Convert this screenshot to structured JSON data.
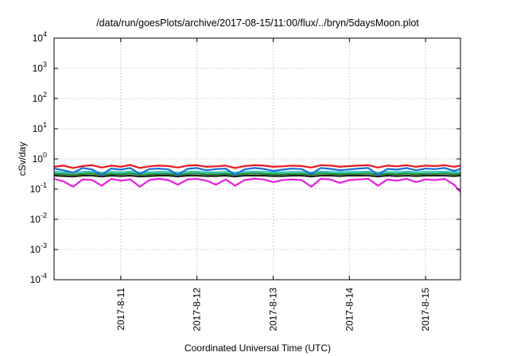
{
  "chart_data": {
    "type": "line",
    "title": "/data/run/goesPlots/archive/2017-08-15/11:00/flux/../bryn/5daysMoon.plot",
    "xlabel": "Coordinated Universal Time (UTC)",
    "ylabel": "cSv/day",
    "yscale": "log",
    "ylim": [
      0.0001,
      10000
    ],
    "xlim": [
      "2017-08-10 03:00",
      "2017-08-15 11:00"
    ],
    "grid": true,
    "legend": "none",
    "x_ticks": [
      {
        "label": "2017-8-11",
        "value": "2017-08-11 00:00"
      },
      {
        "label": "2017-8-12",
        "value": "2017-08-12 00:00"
      },
      {
        "label": "2017-8-13",
        "value": "2017-08-13 00:00"
      },
      {
        "label": "2017-8-14",
        "value": "2017-08-14 00:00"
      },
      {
        "label": "2017-8-15",
        "value": "2017-08-15 00:00"
      }
    ],
    "y_ticks": [
      {
        "base": "10",
        "exp": "4",
        "value": 10000
      },
      {
        "base": "10",
        "exp": "3",
        "value": 1000
      },
      {
        "base": "10",
        "exp": "2",
        "value": 100
      },
      {
        "base": "10",
        "exp": "1",
        "value": 10
      },
      {
        "base": "10",
        "exp": "0",
        "value": 1
      },
      {
        "base": "10",
        "exp": "-1",
        "value": 0.1
      },
      {
        "base": "10",
        "exp": "-2",
        "value": 0.01
      },
      {
        "base": "10",
        "exp": "-3",
        "value": 0.001
      },
      {
        "base": "10",
        "exp": "-4",
        "value": 0.0001
      }
    ],
    "x": [
      "2017-08-10 03:00",
      "2017-08-10 06:00",
      "2017-08-10 09:00",
      "2017-08-10 12:00",
      "2017-08-10 15:00",
      "2017-08-10 18:00",
      "2017-08-10 21:00",
      "2017-08-11 00:00",
      "2017-08-11 03:00",
      "2017-08-11 06:00",
      "2017-08-11 09:00",
      "2017-08-11 12:00",
      "2017-08-11 15:00",
      "2017-08-11 18:00",
      "2017-08-11 21:00",
      "2017-08-12 00:00",
      "2017-08-12 03:00",
      "2017-08-12 06:00",
      "2017-08-12 09:00",
      "2017-08-12 12:00",
      "2017-08-12 15:00",
      "2017-08-12 18:00",
      "2017-08-12 21:00",
      "2017-08-13 00:00",
      "2017-08-13 03:00",
      "2017-08-13 06:00",
      "2017-08-13 09:00",
      "2017-08-13 12:00",
      "2017-08-13 15:00",
      "2017-08-13 18:00",
      "2017-08-13 21:00",
      "2017-08-14 00:00",
      "2017-08-14 03:00",
      "2017-08-14 06:00",
      "2017-08-14 09:00",
      "2017-08-14 12:00",
      "2017-08-14 15:00",
      "2017-08-14 18:00",
      "2017-08-14 21:00",
      "2017-08-15 00:00",
      "2017-08-15 03:00",
      "2017-08-15 06:00",
      "2017-08-15 09:00",
      "2017-08-15 11:00"
    ],
    "series": [
      {
        "color": "#e8191e",
        "values": [
          0.55,
          0.6,
          0.5,
          0.58,
          0.62,
          0.52,
          0.6,
          0.55,
          0.63,
          0.5,
          0.57,
          0.6,
          0.58,
          0.52,
          0.6,
          0.62,
          0.55,
          0.57,
          0.6,
          0.5,
          0.58,
          0.62,
          0.6,
          0.55,
          0.57,
          0.6,
          0.58,
          0.52,
          0.62,
          0.6,
          0.55,
          0.58,
          0.6,
          0.62,
          0.52,
          0.6,
          0.57,
          0.62,
          0.55,
          0.6,
          0.58,
          0.62,
          0.55,
          0.6
        ]
      },
      {
        "color": "#1a6fd8",
        "values": [
          0.48,
          0.42,
          0.35,
          0.5,
          0.45,
          0.3,
          0.48,
          0.44,
          0.5,
          0.32,
          0.46,
          0.48,
          0.45,
          0.3,
          0.47,
          0.5,
          0.42,
          0.46,
          0.48,
          0.3,
          0.45,
          0.5,
          0.47,
          0.4,
          0.44,
          0.48,
          0.46,
          0.32,
          0.5,
          0.47,
          0.42,
          0.45,
          0.48,
          0.5,
          0.3,
          0.47,
          0.44,
          0.5,
          0.42,
          0.48,
          0.46,
          0.5,
          0.4,
          0.47
        ]
      },
      {
        "color": "#2bc4b4",
        "values": [
          0.37,
          0.36,
          0.35,
          0.37,
          0.38,
          0.35,
          0.37,
          0.36,
          0.38,
          0.35,
          0.36,
          0.37,
          0.37,
          0.35,
          0.37,
          0.38,
          0.36,
          0.36,
          0.37,
          0.35,
          0.37,
          0.38,
          0.37,
          0.36,
          0.36,
          0.37,
          0.37,
          0.35,
          0.38,
          0.37,
          0.36,
          0.37,
          0.37,
          0.38,
          0.35,
          0.37,
          0.36,
          0.38,
          0.36,
          0.37,
          0.37,
          0.38,
          0.36,
          0.37
        ]
      },
      {
        "color": "#1b8a2a",
        "values": [
          0.32,
          0.31,
          0.3,
          0.32,
          0.33,
          0.3,
          0.32,
          0.31,
          0.33,
          0.3,
          0.31,
          0.32,
          0.32,
          0.3,
          0.32,
          0.33,
          0.31,
          0.31,
          0.32,
          0.3,
          0.32,
          0.33,
          0.32,
          0.31,
          0.31,
          0.32,
          0.32,
          0.3,
          0.33,
          0.32,
          0.31,
          0.32,
          0.32,
          0.33,
          0.3,
          0.32,
          0.31,
          0.33,
          0.31,
          0.32,
          0.32,
          0.33,
          0.31,
          0.32
        ]
      },
      {
        "color": "#222222",
        "values": [
          0.28,
          0.27,
          0.26,
          0.28,
          0.28,
          0.26,
          0.28,
          0.27,
          0.28,
          0.26,
          0.27,
          0.28,
          0.28,
          0.26,
          0.28,
          0.28,
          0.27,
          0.27,
          0.28,
          0.26,
          0.28,
          0.28,
          0.28,
          0.27,
          0.27,
          0.28,
          0.28,
          0.26,
          0.28,
          0.28,
          0.27,
          0.28,
          0.28,
          0.28,
          0.26,
          0.28,
          0.27,
          0.28,
          0.27,
          0.28,
          0.28,
          0.28,
          0.27,
          0.28
        ]
      },
      {
        "color": "#e81ee0",
        "values": [
          0.22,
          0.18,
          0.12,
          0.21,
          0.2,
          0.13,
          0.22,
          0.19,
          0.21,
          0.12,
          0.2,
          0.22,
          0.2,
          0.14,
          0.21,
          0.22,
          0.19,
          0.14,
          0.21,
          0.13,
          0.2,
          0.22,
          0.21,
          0.17,
          0.2,
          0.21,
          0.2,
          0.12,
          0.22,
          0.21,
          0.16,
          0.2,
          0.21,
          0.22,
          0.13,
          0.21,
          0.19,
          0.22,
          0.17,
          0.21,
          0.2,
          0.22,
          0.14,
          0.08
        ]
      }
    ]
  }
}
